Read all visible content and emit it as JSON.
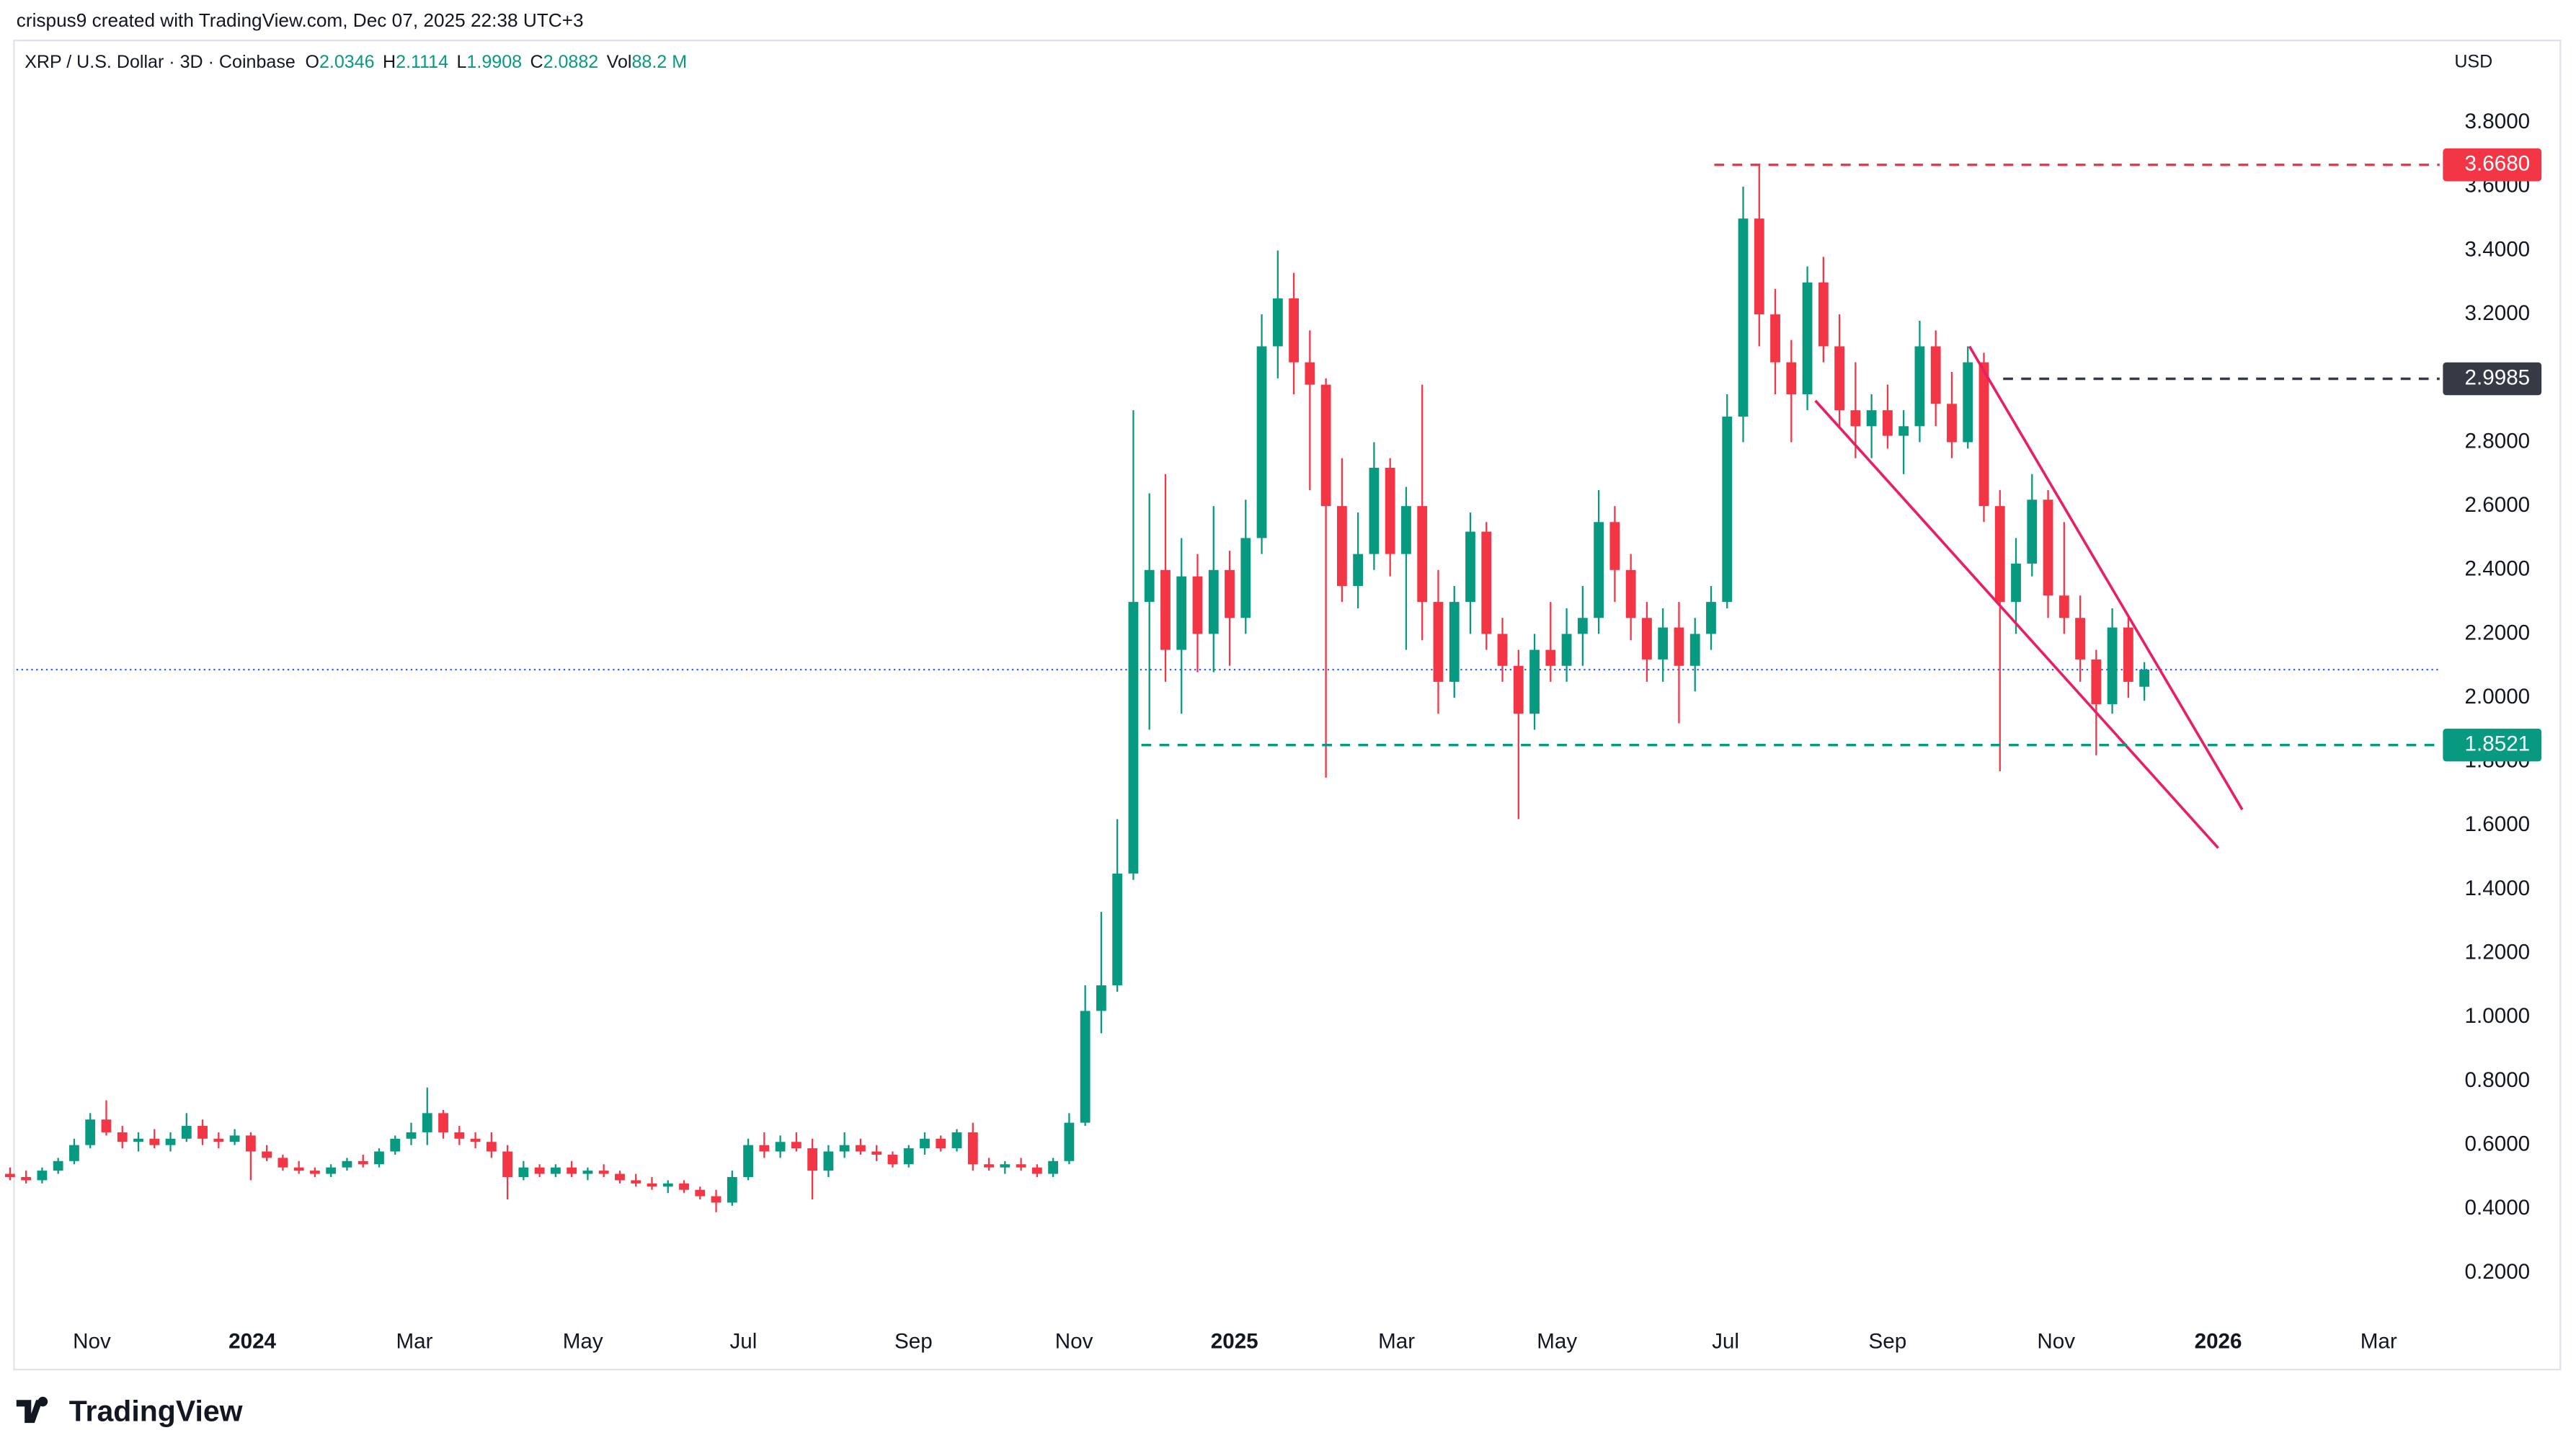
{
  "header": {
    "credit": "crispus9 created with TradingView.com, Dec 07, 2025 22:38 UTC+3",
    "symbol": "XRP / U.S. Dollar · 3D · Coinbase",
    "ohlc": [
      {
        "key": "O",
        "value": "2.0346"
      },
      {
        "key": "H",
        "value": "2.1114"
      },
      {
        "key": "L",
        "value": "1.9908"
      },
      {
        "key": "C",
        "value": "2.0882"
      }
    ],
    "volume": {
      "key": "Vol",
      "value": "88.2 M"
    },
    "currency": "USD"
  },
  "footer": {
    "logo": "TradingView"
  },
  "chart_data": {
    "type": "candlestick",
    "up_color": "#089981",
    "down_color": "#f23645",
    "grid": false,
    "xlim": [
      0.4,
      151.4
    ],
    "ylim": [
      -0.1,
      4.06
    ],
    "xticks": [
      {
        "value": 5.1,
        "label": "Nov"
      },
      {
        "value": 15.1,
        "label": "2024"
      },
      {
        "value": 25.2,
        "label": "Mar"
      },
      {
        "value": 35.7,
        "label": "May"
      },
      {
        "value": 45.7,
        "label": "Jul"
      },
      {
        "value": 56.3,
        "label": "Sep"
      },
      {
        "value": 66.3,
        "label": "Nov"
      },
      {
        "value": 76.3,
        "label": "2025"
      },
      {
        "value": 86.4,
        "label": "Mar"
      },
      {
        "value": 96.4,
        "label": "May"
      },
      {
        "value": 106.9,
        "label": "Jul"
      },
      {
        "value": 117,
        "label": "Sep"
      },
      {
        "value": 127.5,
        "label": "Nov"
      },
      {
        "value": 137.6,
        "label": "2026"
      },
      {
        "value": 147.6,
        "label": "Mar"
      }
    ],
    "yticks": [
      {
        "value": 0.2,
        "label": "0.2000"
      },
      {
        "value": 0.4,
        "label": "0.4000"
      },
      {
        "value": 0.6,
        "label": "0.6000"
      },
      {
        "value": 0.8,
        "label": "0.8000"
      },
      {
        "value": 1,
        "label": "1.0000"
      },
      {
        "value": 1.2,
        "label": "1.2000"
      },
      {
        "value": 1.4,
        "label": "1.4000"
      },
      {
        "value": 1.6,
        "label": "1.6000"
      },
      {
        "value": 1.8,
        "label": "1.8000"
      },
      {
        "value": 2,
        "label": "2.0000"
      },
      {
        "value": 2.2,
        "label": "2.2000"
      },
      {
        "value": 2.4,
        "label": "2.4000"
      },
      {
        "value": 2.6,
        "label": "2.6000"
      },
      {
        "value": 2.8,
        "label": "2.8000"
      },
      {
        "value": 3,
        "label": "3.0000"
      },
      {
        "value": 3.2,
        "label": "3.2000"
      },
      {
        "value": 3.4,
        "label": "3.4000"
      },
      {
        "value": 3.6,
        "label": "3.6000"
      },
      {
        "value": 3.8,
        "label": "3.8000"
      }
    ],
    "levels": [
      {
        "value": 3.668,
        "label": "3.6680",
        "color": "#f23645",
        "start": 106.2
      },
      {
        "value": 2.9985,
        "label": "2.9985",
        "color": "#363a45",
        "start": 124.2
      },
      {
        "value": 1.8521,
        "label": "1.8521",
        "color": "#089981",
        "start": 70.5
      }
    ],
    "trendlines": [
      {
        "x": [
          122.1,
          139.1
        ],
        "y": [
          3.1,
          1.65
        ],
        "color": "#e91e63"
      },
      {
        "x": [
          112.5,
          137.6
        ],
        "y": [
          2.93,
          1.53
        ],
        "color": "#e91e63"
      }
    ],
    "candles": [
      [
        0.51,
        0.53,
        0.49,
        0.5
      ],
      [
        0.5,
        0.52,
        0.48,
        0.49
      ],
      [
        0.49,
        0.53,
        0.48,
        0.52
      ],
      [
        0.52,
        0.56,
        0.51,
        0.55
      ],
      [
        0.55,
        0.62,
        0.54,
        0.6
      ],
      [
        0.6,
        0.7,
        0.59,
        0.68
      ],
      [
        0.68,
        0.74,
        0.63,
        0.64
      ],
      [
        0.64,
        0.66,
        0.59,
        0.61
      ],
      [
        0.61,
        0.64,
        0.58,
        0.62
      ],
      [
        0.62,
        0.65,
        0.59,
        0.6
      ],
      [
        0.6,
        0.64,
        0.58,
        0.62
      ],
      [
        0.62,
        0.7,
        0.61,
        0.66
      ],
      [
        0.66,
        0.68,
        0.6,
        0.62
      ],
      [
        0.62,
        0.64,
        0.59,
        0.61
      ],
      [
        0.61,
        0.65,
        0.6,
        0.63
      ],
      [
        0.63,
        0.64,
        0.49,
        0.58
      ],
      [
        0.58,
        0.6,
        0.55,
        0.56
      ],
      [
        0.56,
        0.57,
        0.52,
        0.53
      ],
      [
        0.53,
        0.55,
        0.51,
        0.52
      ],
      [
        0.52,
        0.53,
        0.5,
        0.51
      ],
      [
        0.51,
        0.54,
        0.5,
        0.53
      ],
      [
        0.53,
        0.56,
        0.52,
        0.55
      ],
      [
        0.55,
        0.57,
        0.53,
        0.54
      ],
      [
        0.54,
        0.59,
        0.53,
        0.58
      ],
      [
        0.58,
        0.63,
        0.57,
        0.62
      ],
      [
        0.62,
        0.67,
        0.6,
        0.64
      ],
      [
        0.64,
        0.78,
        0.6,
        0.7
      ],
      [
        0.7,
        0.71,
        0.62,
        0.64
      ],
      [
        0.64,
        0.66,
        0.6,
        0.62
      ],
      [
        0.62,
        0.64,
        0.59,
        0.61
      ],
      [
        0.61,
        0.64,
        0.56,
        0.58
      ],
      [
        0.58,
        0.6,
        0.43,
        0.5
      ],
      [
        0.5,
        0.55,
        0.49,
        0.53
      ],
      [
        0.53,
        0.54,
        0.5,
        0.51
      ],
      [
        0.51,
        0.54,
        0.5,
        0.53
      ],
      [
        0.53,
        0.55,
        0.5,
        0.51
      ],
      [
        0.51,
        0.53,
        0.49,
        0.52
      ],
      [
        0.52,
        0.54,
        0.5,
        0.51
      ],
      [
        0.51,
        0.52,
        0.48,
        0.49
      ],
      [
        0.49,
        0.51,
        0.47,
        0.48
      ],
      [
        0.48,
        0.5,
        0.46,
        0.47
      ],
      [
        0.47,
        0.49,
        0.45,
        0.48
      ],
      [
        0.48,
        0.49,
        0.45,
        0.46
      ],
      [
        0.46,
        0.47,
        0.43,
        0.44
      ],
      [
        0.44,
        0.46,
        0.39,
        0.42
      ],
      [
        0.42,
        0.52,
        0.41,
        0.5
      ],
      [
        0.5,
        0.62,
        0.49,
        0.6
      ],
      [
        0.6,
        0.64,
        0.56,
        0.58
      ],
      [
        0.58,
        0.63,
        0.56,
        0.61
      ],
      [
        0.61,
        0.64,
        0.58,
        0.59
      ],
      [
        0.59,
        0.62,
        0.43,
        0.52
      ],
      [
        0.52,
        0.6,
        0.5,
        0.58
      ],
      [
        0.58,
        0.64,
        0.56,
        0.6
      ],
      [
        0.6,
        0.62,
        0.57,
        0.58
      ],
      [
        0.58,
        0.6,
        0.55,
        0.57
      ],
      [
        0.57,
        0.58,
        0.53,
        0.54
      ],
      [
        0.54,
        0.6,
        0.53,
        0.59
      ],
      [
        0.59,
        0.64,
        0.57,
        0.62
      ],
      [
        0.62,
        0.63,
        0.58,
        0.59
      ],
      [
        0.59,
        0.65,
        0.58,
        0.64
      ],
      [
        0.64,
        0.67,
        0.52,
        0.54
      ],
      [
        0.54,
        0.56,
        0.52,
        0.53
      ],
      [
        0.53,
        0.55,
        0.51,
        0.54
      ],
      [
        0.54,
        0.56,
        0.52,
        0.53
      ],
      [
        0.53,
        0.54,
        0.5,
        0.51
      ],
      [
        0.51,
        0.56,
        0.5,
        0.55
      ],
      [
        0.55,
        0.7,
        0.54,
        0.67
      ],
      [
        0.67,
        1.1,
        0.66,
        1.02
      ],
      [
        1.02,
        1.33,
        0.95,
        1.1
      ],
      [
        1.1,
        1.62,
        1.08,
        1.45
      ],
      [
        1.45,
        2.9,
        1.43,
        2.3
      ],
      [
        2.3,
        2.64,
        1.9,
        2.4
      ],
      [
        2.4,
        2.7,
        2.05,
        2.15
      ],
      [
        2.15,
        2.5,
        1.95,
        2.38
      ],
      [
        2.38,
        2.45,
        2.08,
        2.2
      ],
      [
        2.2,
        2.6,
        2.08,
        2.4
      ],
      [
        2.4,
        2.46,
        2.1,
        2.25
      ],
      [
        2.25,
        2.62,
        2.2,
        2.5
      ],
      [
        2.5,
        3.2,
        2.45,
        3.1
      ],
      [
        3.1,
        3.4,
        3.0,
        3.25
      ],
      [
        3.25,
        3.33,
        2.95,
        3.05
      ],
      [
        3.05,
        3.15,
        2.65,
        2.98
      ],
      [
        2.98,
        3.0,
        1.75,
        2.6
      ],
      [
        2.6,
        2.75,
        2.3,
        2.35
      ],
      [
        2.35,
        2.58,
        2.28,
        2.45
      ],
      [
        2.45,
        2.8,
        2.4,
        2.72
      ],
      [
        2.72,
        2.75,
        2.38,
        2.45
      ],
      [
        2.45,
        2.66,
        2.15,
        2.6
      ],
      [
        2.6,
        2.98,
        2.18,
        2.3
      ],
      [
        2.3,
        2.4,
        1.95,
        2.05
      ],
      [
        2.05,
        2.35,
        2.0,
        2.3
      ],
      [
        2.3,
        2.58,
        2.2,
        2.52
      ],
      [
        2.52,
        2.55,
        2.15,
        2.2
      ],
      [
        2.2,
        2.25,
        2.05,
        2.1
      ],
      [
        2.1,
        2.15,
        1.62,
        1.95
      ],
      [
        1.95,
        2.2,
        1.9,
        2.15
      ],
      [
        2.15,
        2.3,
        2.05,
        2.1
      ],
      [
        2.1,
        2.28,
        2.05,
        2.2
      ],
      [
        2.2,
        2.35,
        2.1,
        2.25
      ],
      [
        2.25,
        2.65,
        2.2,
        2.55
      ],
      [
        2.55,
        2.6,
        2.3,
        2.4
      ],
      [
        2.4,
        2.45,
        2.18,
        2.25
      ],
      [
        2.25,
        2.3,
        2.05,
        2.12
      ],
      [
        2.12,
        2.28,
        2.05,
        2.22
      ],
      [
        2.22,
        2.3,
        1.92,
        2.1
      ],
      [
        2.1,
        2.25,
        2.02,
        2.2
      ],
      [
        2.2,
        2.35,
        2.15,
        2.3
      ],
      [
        2.3,
        2.95,
        2.28,
        2.88
      ],
      [
        2.88,
        3.6,
        2.8,
        3.5
      ],
      [
        3.5,
        3.668,
        3.1,
        3.2
      ],
      [
        3.2,
        3.28,
        2.95,
        3.05
      ],
      [
        3.05,
        3.12,
        2.8,
        2.95
      ],
      [
        2.95,
        3.35,
        2.9,
        3.3
      ],
      [
        3.3,
        3.38,
        3.05,
        3.1
      ],
      [
        3.1,
        3.2,
        2.85,
        2.9
      ],
      [
        2.9,
        3.05,
        2.75,
        2.85
      ],
      [
        2.85,
        2.95,
        2.75,
        2.9
      ],
      [
        2.9,
        2.98,
        2.78,
        2.82
      ],
      [
        2.82,
        2.9,
        2.7,
        2.85
      ],
      [
        2.85,
        3.18,
        2.8,
        3.1
      ],
      [
        3.1,
        3.15,
        2.85,
        2.92
      ],
      [
        2.92,
        3.02,
        2.75,
        2.8
      ],
      [
        2.8,
        3.1,
        2.78,
        3.05
      ],
      [
        3.05,
        3.08,
        2.55,
        2.6
      ],
      [
        2.6,
        2.65,
        1.77,
        2.3
      ],
      [
        2.3,
        2.5,
        2.2,
        2.42
      ],
      [
        2.42,
        2.7,
        2.38,
        2.62
      ],
      [
        2.62,
        2.65,
        2.25,
        2.32
      ],
      [
        2.32,
        2.55,
        2.2,
        2.25
      ],
      [
        2.25,
        2.32,
        2.05,
        2.12
      ],
      [
        2.12,
        2.15,
        1.82,
        1.98
      ],
      [
        1.98,
        2.28,
        1.95,
        2.22
      ],
      [
        2.22,
        2.25,
        2.0,
        2.05
      ],
      [
        2.0346,
        2.1114,
        1.9908,
        2.0882
      ]
    ]
  }
}
